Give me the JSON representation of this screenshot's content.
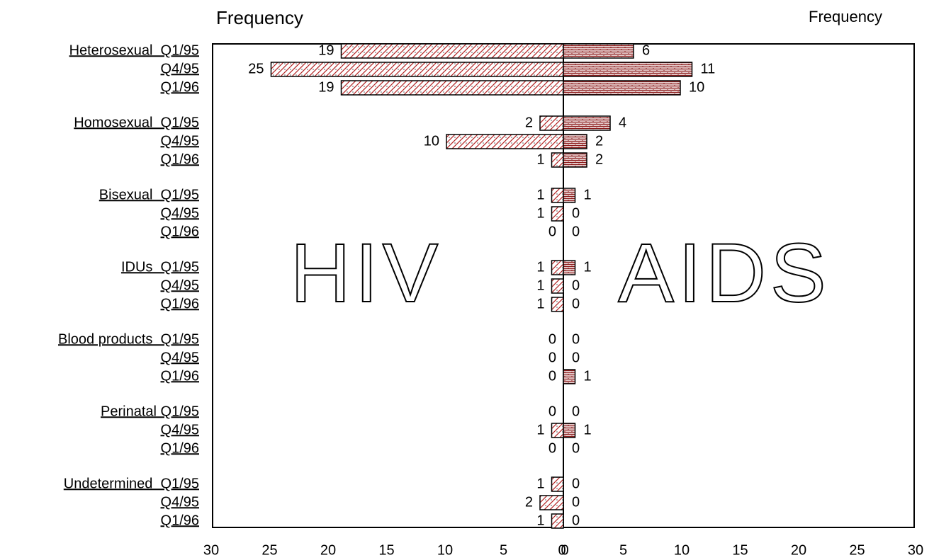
{
  "chart_data": {
    "type": "butterfly",
    "left_title": "Frequency",
    "right_title": "Frequency",
    "categories": [
      "Heterosexual  Q1/95",
      "Q4/95",
      "Q1/96",
      "Homosexual  Q1/95",
      "Q4/95",
      "Q1/96",
      "Bisexual  Q1/95",
      "Q4/95",
      "Q1/96",
      "IDUs  Q1/95",
      "Q4/95",
      "Q1/96",
      "Blood products  Q1/95",
      "Q4/95",
      "Q1/96",
      "Perinatal Q1/95",
      "Q4/95",
      "Q1/96",
      "Undetermined  Q1/95",
      "Q4/95",
      "Q1/96"
    ],
    "series": [
      {
        "name": "HIV",
        "side": "left",
        "color": "#b22222",
        "values": [
          19,
          25,
          19,
          2,
          10,
          1,
          1,
          1,
          0,
          1,
          1,
          1,
          0,
          0,
          0,
          0,
          1,
          0,
          1,
          2,
          1
        ]
      },
      {
        "name": "AIDS",
        "side": "right",
        "color": "#8b1a1a",
        "values": [
          6,
          11,
          10,
          4,
          2,
          2,
          1,
          0,
          0,
          1,
          0,
          0,
          0,
          0,
          1,
          0,
          1,
          0,
          0,
          0,
          0
        ]
      }
    ],
    "xlim_left": [
      0,
      30
    ],
    "xticks_left": [
      30,
      25,
      20,
      15,
      10,
      5,
      0
    ],
    "xlim_right": [
      0,
      30
    ],
    "xticks_right": [
      0,
      5,
      10,
      15,
      20,
      25,
      30
    ]
  }
}
